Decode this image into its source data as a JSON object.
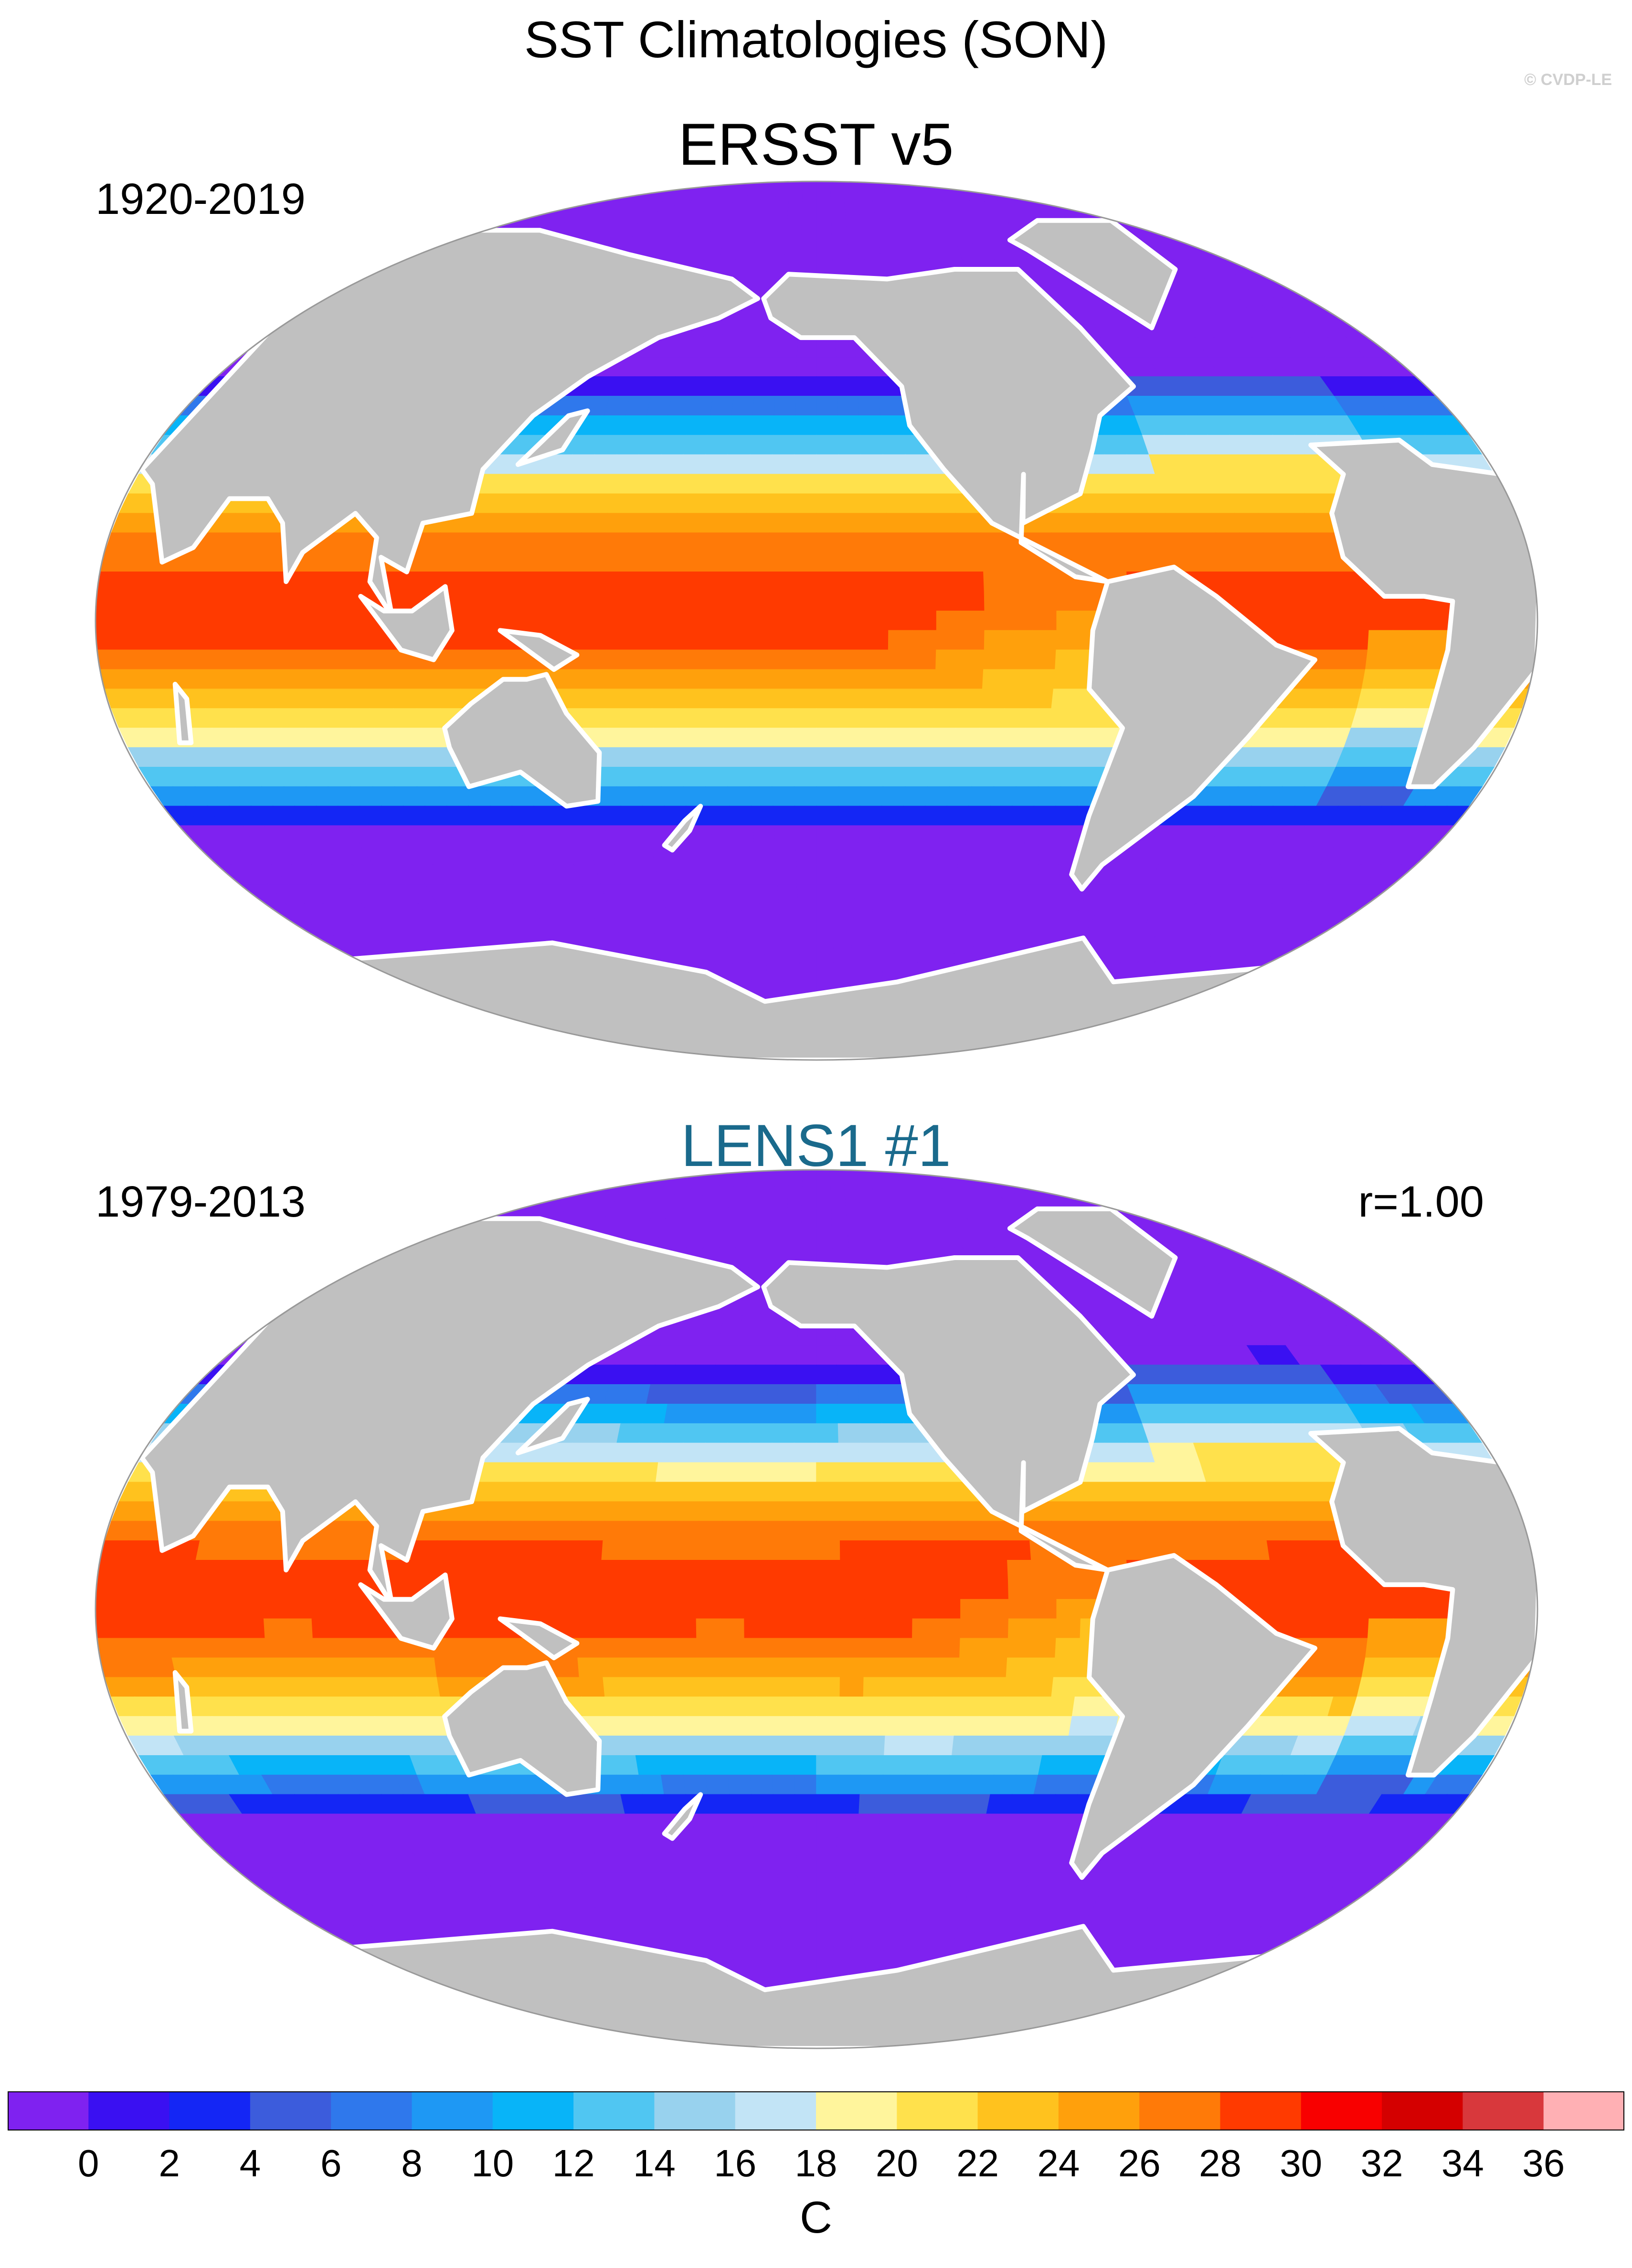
{
  "figure": {
    "title": "SST Climatologies (SON)",
    "watermark": "© CVDP-LE"
  },
  "panels": [
    {
      "title": "ERSST v5",
      "period": "1920-2019",
      "stat": "",
      "title_color": "#000000"
    },
    {
      "title": "LENS1 #1",
      "period": "1979-2013",
      "stat": "r=1.00",
      "title_color": "#1a6a8c"
    }
  ],
  "colorbar": {
    "unit": "C",
    "tick_labels": [
      "0",
      "2",
      "4",
      "6",
      "8",
      "10",
      "12",
      "14",
      "16",
      "18",
      "20",
      "22",
      "24",
      "26",
      "28",
      "30",
      "32",
      "34",
      "36"
    ],
    "colors": [
      "#7f22f0",
      "#3a10f2",
      "#1426f5",
      "#3c5cdc",
      "#2f78ec",
      "#1e98f4",
      "#08b4f8",
      "#50c6f2",
      "#98d2ee",
      "#c2e4f6",
      "#fff59c",
      "#ffe14c",
      "#ffc21e",
      "#ffa00c",
      "#ff7a08",
      "#ff3a00",
      "#f80000",
      "#d40000",
      "#d8383c",
      "#ffb0b4"
    ]
  },
  "map_colors": {
    "land": "#c0c0c0",
    "coast": "#ffffff",
    "globe_edge": "#999999"
  }
}
